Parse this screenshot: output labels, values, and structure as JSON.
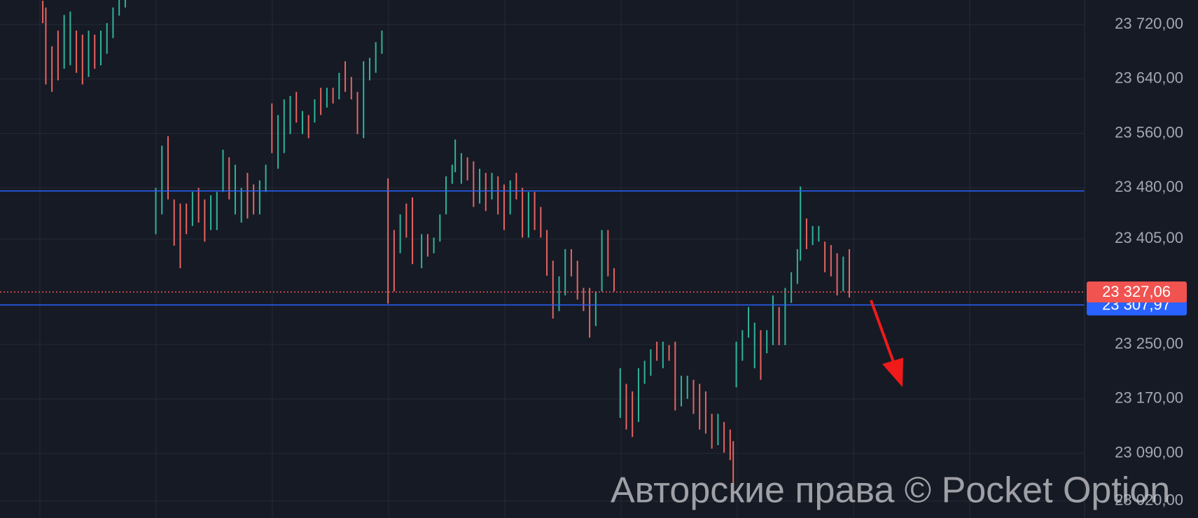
{
  "chart_data": {
    "type": "ohlc",
    "watermark": "Авторские права © Pocket Option",
    "xlim": [
      0,
      355
    ],
    "ylim": [
      22995,
      23756
    ],
    "yticks": [
      {
        "value": 23720,
        "label": "23 720,00"
      },
      {
        "value": 23640,
        "label": "23 640,00"
      },
      {
        "value": 23560,
        "label": "23 560,00"
      },
      {
        "value": 23480,
        "label": "23 480,00"
      },
      {
        "value": 23405,
        "label": "23 405,00"
      },
      {
        "value": 23250,
        "label": "23 250,00"
      },
      {
        "value": 23170,
        "label": "23 170,00"
      },
      {
        "value": 23090,
        "label": "23 090,00"
      },
      {
        "value": 23020,
        "label": "23 020,00"
      }
    ],
    "grid": true,
    "up_color": "#2fb39a",
    "down_color": "#e5645f",
    "levels": [
      {
        "value": 23475.5,
        "color": "#2962ff",
        "style": "solid"
      },
      {
        "value": 23307.97,
        "label": "23 307,97",
        "color": "#2962ff",
        "style": "solid"
      },
      {
        "value": 23327.06,
        "label": "23 327,06",
        "color": "#f05350",
        "style": "dotted"
      }
    ],
    "bars": [
      {
        "x": 14,
        "high": 23755,
        "low": 23722,
        "up": false
      },
      {
        "x": 15,
        "high": 23745,
        "low": 23632,
        "up": false
      },
      {
        "x": 17,
        "high": 23688,
        "low": 23621,
        "up": false
      },
      {
        "x": 19,
        "high": 23711,
        "low": 23638,
        "up": false
      },
      {
        "x": 21,
        "high": 23734,
        "low": 23655,
        "up": true
      },
      {
        "x": 23,
        "high": 23739,
        "low": 23660,
        "up": true
      },
      {
        "x": 25,
        "high": 23711,
        "low": 23649,
        "up": false
      },
      {
        "x": 27,
        "high": 23705,
        "low": 23632,
        "up": false
      },
      {
        "x": 29,
        "high": 23711,
        "low": 23643,
        "up": true
      },
      {
        "x": 31,
        "high": 23705,
        "low": 23655,
        "up": false
      },
      {
        "x": 33,
        "high": 23711,
        "low": 23660,
        "up": true
      },
      {
        "x": 35,
        "high": 23722,
        "low": 23677,
        "up": true
      },
      {
        "x": 37,
        "high": 23745,
        "low": 23700,
        "up": true
      },
      {
        "x": 39,
        "high": 23756,
        "low": 23733,
        "up": true
      },
      {
        "x": 41,
        "high": 23756,
        "low": 23745,
        "up": true
      },
      {
        "x": 51,
        "high": 23480,
        "low": 23412,
        "up": true
      },
      {
        "x": 53,
        "high": 23542,
        "low": 23441,
        "up": true
      },
      {
        "x": 55,
        "high": 23556,
        "low": 23463,
        "up": false
      },
      {
        "x": 57,
        "high": 23463,
        "low": 23395,
        "up": false
      },
      {
        "x": 59,
        "high": 23457,
        "low": 23362,
        "up": false
      },
      {
        "x": 61,
        "high": 23457,
        "low": 23412,
        "up": false
      },
      {
        "x": 63,
        "high": 23474,
        "low": 23424,
        "up": true
      },
      {
        "x": 65,
        "high": 23480,
        "low": 23429,
        "up": false
      },
      {
        "x": 67,
        "high": 23463,
        "low": 23401,
        "up": false
      },
      {
        "x": 69,
        "high": 23469,
        "low": 23418,
        "up": true
      },
      {
        "x": 71,
        "high": 23474,
        "low": 23418,
        "up": true
      },
      {
        "x": 73,
        "high": 23536,
        "low": 23474,
        "up": true
      },
      {
        "x": 75,
        "high": 23525,
        "low": 23463,
        "up": false
      },
      {
        "x": 77,
        "high": 23514,
        "low": 23441,
        "up": true
      },
      {
        "x": 79,
        "high": 23480,
        "low": 23429,
        "up": true
      },
      {
        "x": 81,
        "high": 23502,
        "low": 23435,
        "up": false
      },
      {
        "x": 83,
        "high": 23485,
        "low": 23441,
        "up": false
      },
      {
        "x": 85,
        "high": 23491,
        "low": 23441,
        "up": true
      },
      {
        "x": 87,
        "high": 23514,
        "low": 23474,
        "up": true
      },
      {
        "x": 89,
        "high": 23604,
        "low": 23531,
        "up": false
      },
      {
        "x": 91,
        "high": 23587,
        "low": 23508,
        "up": true
      },
      {
        "x": 93,
        "high": 23610,
        "low": 23531,
        "up": true
      },
      {
        "x": 95,
        "high": 23615,
        "low": 23559,
        "up": true
      },
      {
        "x": 97,
        "high": 23621,
        "low": 23576,
        "up": false
      },
      {
        "x": 99,
        "high": 23593,
        "low": 23559,
        "up": true
      },
      {
        "x": 101,
        "high": 23587,
        "low": 23553,
        "up": false
      },
      {
        "x": 103,
        "high": 23610,
        "low": 23576,
        "up": true
      },
      {
        "x": 105,
        "high": 23627,
        "low": 23587,
        "up": false
      },
      {
        "x": 107,
        "high": 23627,
        "low": 23598,
        "up": true
      },
      {
        "x": 109,
        "high": 23627,
        "low": 23604,
        "up": false
      },
      {
        "x": 111,
        "high": 23649,
        "low": 23610,
        "up": true
      },
      {
        "x": 113,
        "high": 23666,
        "low": 23621,
        "up": false
      },
      {
        "x": 115,
        "high": 23643,
        "low": 23610,
        "up": false
      },
      {
        "x": 117,
        "high": 23621,
        "low": 23559,
        "up": false
      },
      {
        "x": 119,
        "high": 23666,
        "low": 23553,
        "up": true
      },
      {
        "x": 121,
        "high": 23671,
        "low": 23638,
        "up": true
      },
      {
        "x": 123,
        "high": 23694,
        "low": 23649,
        "up": true
      },
      {
        "x": 125,
        "high": 23711,
        "low": 23677,
        "up": true
      },
      {
        "x": 127,
        "high": 23494,
        "low": 23310,
        "up": false
      },
      {
        "x": 129,
        "high": 23418,
        "low": 23328,
        "up": false
      },
      {
        "x": 131,
        "high": 23441,
        "low": 23384,
        "up": true
      },
      {
        "x": 133,
        "high": 23457,
        "low": 23407,
        "up": false
      },
      {
        "x": 135,
        "high": 23466,
        "low": 23368,
        "up": false
      },
      {
        "x": 138,
        "high": 23412,
        "low": 23362,
        "up": true
      },
      {
        "x": 140,
        "high": 23412,
        "low": 23379,
        "up": false
      },
      {
        "x": 142,
        "high": 23407,
        "low": 23384,
        "up": true
      },
      {
        "x": 144,
        "high": 23441,
        "low": 23401,
        "up": true
      },
      {
        "x": 146,
        "high": 23497,
        "low": 23441,
        "up": true
      },
      {
        "x": 148,
        "high": 23514,
        "low": 23486,
        "up": true
      },
      {
        "x": 149,
        "high": 23551,
        "low": 23503,
        "up": true
      },
      {
        "x": 151,
        "high": 23531,
        "low": 23486,
        "up": true
      },
      {
        "x": 153,
        "high": 23525,
        "low": 23491,
        "up": false
      },
      {
        "x": 155,
        "high": 23519,
        "low": 23452,
        "up": false
      },
      {
        "x": 157,
        "high": 23508,
        "low": 23457,
        "up": true
      },
      {
        "x": 159,
        "high": 23502,
        "low": 23446,
        "up": false
      },
      {
        "x": 161,
        "high": 23502,
        "low": 23463,
        "up": true
      },
      {
        "x": 163,
        "high": 23497,
        "low": 23441,
        "up": false
      },
      {
        "x": 165,
        "high": 23485,
        "low": 23418,
        "up": false
      },
      {
        "x": 167,
        "high": 23491,
        "low": 23441,
        "up": true
      },
      {
        "x": 169,
        "high": 23502,
        "low": 23463,
        "up": false
      },
      {
        "x": 171,
        "high": 23480,
        "low": 23407,
        "up": false
      },
      {
        "x": 173,
        "high": 23474,
        "low": 23407,
        "up": true
      },
      {
        "x": 175,
        "high": 23474,
        "low": 23418,
        "up": false
      },
      {
        "x": 177,
        "high": 23452,
        "low": 23407,
        "up": false
      },
      {
        "x": 179,
        "high": 23418,
        "low": 23351,
        "up": false
      },
      {
        "x": 181,
        "high": 23373,
        "low": 23288,
        "up": false
      },
      {
        "x": 183,
        "high": 23350,
        "low": 23299,
        "up": true
      },
      {
        "x": 185,
        "high": 23390,
        "low": 23322,
        "up": true
      },
      {
        "x": 187,
        "high": 23390,
        "low": 23350,
        "up": false
      },
      {
        "x": 189,
        "high": 23373,
        "low": 23316,
        "up": false
      },
      {
        "x": 191,
        "high": 23333,
        "low": 23299,
        "up": false
      },
      {
        "x": 193,
        "high": 23333,
        "low": 23260,
        "up": false
      },
      {
        "x": 195,
        "high": 23328,
        "low": 23277,
        "up": true
      },
      {
        "x": 197,
        "high": 23418,
        "low": 23328,
        "up": true
      },
      {
        "x": 199,
        "high": 23418,
        "low": 23350,
        "up": false
      },
      {
        "x": 201,
        "high": 23362,
        "low": 23328,
        "up": false
      },
      {
        "x": 203,
        "high": 23215,
        "low": 23142,
        "up": true
      },
      {
        "x": 205,
        "high": 23192,
        "low": 23125,
        "up": false
      },
      {
        "x": 207,
        "high": 23181,
        "low": 23114,
        "up": false
      },
      {
        "x": 209,
        "high": 23215,
        "low": 23136,
        "up": true
      },
      {
        "x": 211,
        "high": 23226,
        "low": 23192,
        "up": true
      },
      {
        "x": 213,
        "high": 23243,
        "low": 23204,
        "up": true
      },
      {
        "x": 215,
        "high": 23254,
        "low": 23226,
        "up": false
      },
      {
        "x": 217,
        "high": 23254,
        "low": 23215,
        "up": true
      },
      {
        "x": 219,
        "high": 23249,
        "low": 23226,
        "up": false
      },
      {
        "x": 221,
        "high": 23254,
        "low": 23153,
        "up": false
      },
      {
        "x": 223,
        "high": 23204,
        "low": 23159,
        "up": true
      },
      {
        "x": 225,
        "high": 23204,
        "low": 23170,
        "up": true
      },
      {
        "x": 227,
        "high": 23198,
        "low": 23148,
        "up": false
      },
      {
        "x": 229,
        "high": 23192,
        "low": 23125,
        "up": false
      },
      {
        "x": 231,
        "high": 23181,
        "low": 23119,
        "up": false
      },
      {
        "x": 233,
        "high": 23148,
        "low": 23097,
        "up": false
      },
      {
        "x": 235,
        "high": 23148,
        "low": 23102,
        "up": true
      },
      {
        "x": 237,
        "high": 23136,
        "low": 23091,
        "up": false
      },
      {
        "x": 239,
        "high": 23125,
        "low": 23080,
        "up": false
      },
      {
        "x": 240,
        "high": 23108,
        "low": 23046,
        "up": false
      },
      {
        "x": 241,
        "high": 23254,
        "low": 23187,
        "up": true
      },
      {
        "x": 243,
        "high": 23271,
        "low": 23226,
        "up": true
      },
      {
        "x": 245,
        "high": 23305,
        "low": 23260,
        "up": true
      },
      {
        "x": 247,
        "high": 23282,
        "low": 23215,
        "up": true
      },
      {
        "x": 249,
        "high": 23271,
        "low": 23198,
        "up": false
      },
      {
        "x": 251,
        "high": 23271,
        "low": 23237,
        "up": true
      },
      {
        "x": 253,
        "high": 23322,
        "low": 23249,
        "up": true
      },
      {
        "x": 255,
        "high": 23305,
        "low": 23249,
        "up": false
      },
      {
        "x": 257,
        "high": 23333,
        "low": 23249,
        "up": true
      },
      {
        "x": 259,
        "high": 23356,
        "low": 23311,
        "up": true
      },
      {
        "x": 261,
        "high": 23390,
        "low": 23339,
        "up": true
      },
      {
        "x": 262,
        "high": 23482,
        "low": 23373,
        "up": true
      },
      {
        "x": 264,
        "high": 23435,
        "low": 23390,
        "up": false
      },
      {
        "x": 266,
        "high": 23424,
        "low": 23396,
        "up": true
      },
      {
        "x": 268,
        "high": 23424,
        "low": 23401,
        "up": true
      },
      {
        "x": 270,
        "high": 23401,
        "low": 23356,
        "up": false
      },
      {
        "x": 272,
        "high": 23396,
        "low": 23350,
        "up": false
      },
      {
        "x": 274,
        "high": 23384,
        "low": 23322,
        "up": false
      },
      {
        "x": 276,
        "high": 23379,
        "low": 23328,
        "up": true
      },
      {
        "x": 278,
        "high": 23390,
        "low": 23319,
        "up": false
      }
    ]
  }
}
